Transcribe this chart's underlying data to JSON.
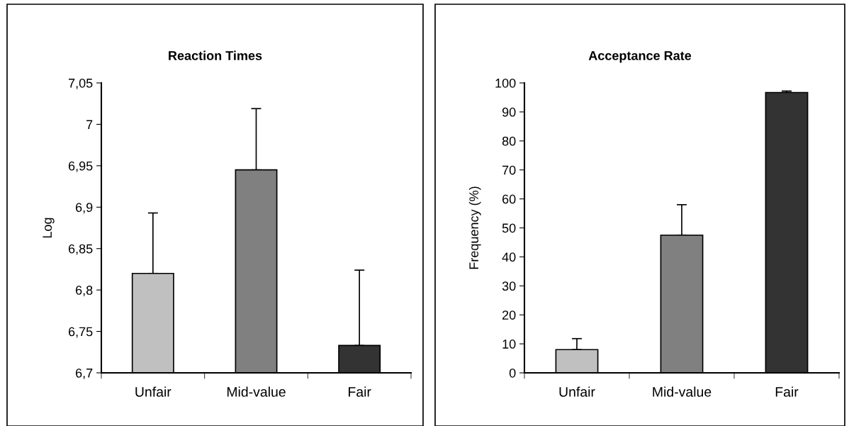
{
  "chart_data": [
    {
      "type": "bar",
      "title": "Reaction Times",
      "ylabel": "Log",
      "categories": [
        "Unfair",
        "Mid-value",
        "Fair"
      ],
      "values": [
        6.82,
        6.945,
        6.733
      ],
      "colors": [
        "#c0c0c0",
        "#808080",
        "#333333"
      ],
      "errors": [
        [
          6.82,
          6.893
        ],
        [
          6.945,
          7.019
        ],
        [
          6.733,
          6.824
        ]
      ],
      "ylim": [
        6.7,
        7.05
      ],
      "yticks": [
        {
          "value": 6.7,
          "label": "6,7"
        },
        {
          "value": 6.75,
          "label": "6,75"
        },
        {
          "value": 6.8,
          "label": "6,8"
        },
        {
          "value": 6.85,
          "label": "6,85"
        },
        {
          "value": 6.9,
          "label": "6,9"
        },
        {
          "value": 6.95,
          "label": "6,95"
        },
        {
          "value": 7,
          "label": "7"
        },
        {
          "value": 7.05,
          "label": "7,05"
        }
      ],
      "grid": false,
      "legend": false
    },
    {
      "type": "bar",
      "title": "Acceptance Rate",
      "ylabel": "Frequency (%)",
      "categories": [
        "Unfair",
        "Mid-value",
        "Fair"
      ],
      "values": [
        8,
        47.5,
        96.7
      ],
      "colors": [
        "#c0c0c0",
        "#808080",
        "#333333"
      ],
      "errors": [
        [
          8,
          11.8
        ],
        [
          47.5,
          58
        ],
        [
          96.7,
          97.2
        ]
      ],
      "ylim": [
        0,
        100
      ],
      "yticks": [
        0,
        10,
        20,
        30,
        40,
        50,
        60,
        70,
        80,
        90,
        100
      ],
      "grid": false,
      "legend": false
    }
  ]
}
